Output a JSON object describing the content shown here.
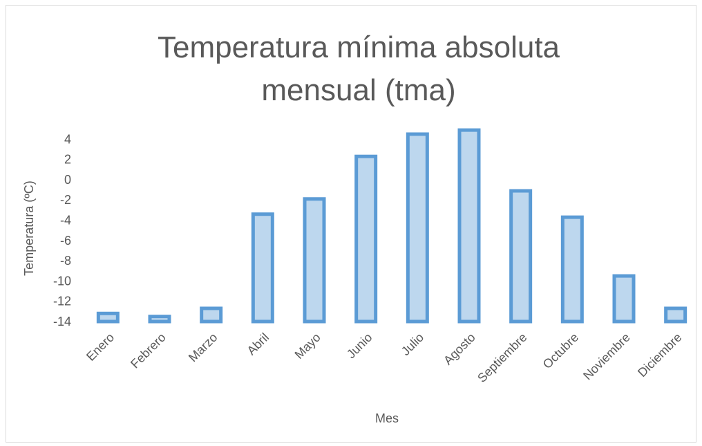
{
  "chart_data": {
    "type": "bar",
    "title_lines": [
      "Temperatura mínima absoluta",
      "mensual (tma)"
    ],
    "xlabel": "Mes",
    "ylabel": "Temperatura (ºC)",
    "categories": [
      "Enero",
      "Febrero",
      "Marzo",
      "Abril",
      "Mayo",
      "Junio",
      "Julio",
      "Agosto",
      "Septiembre",
      "Octubre",
      "Noviembre",
      "Diciembre"
    ],
    "series": [
      {
        "values": [
          -13.2,
          -13.5,
          -12.7,
          -3.4,
          -1.9,
          2.3,
          4.5,
          4.9,
          -1.1,
          -3.7,
          -9.5,
          -12.7
        ]
      }
    ],
    "yticks": [
      -14,
      -12,
      -10,
      -8,
      -6,
      -4,
      -2,
      0,
      2,
      4
    ],
    "ylim": [
      -14,
      6
    ],
    "grid": false,
    "legend": "none",
    "colors": {
      "bar_fill": "#bdd7ee",
      "bar_stroke": "#5b9bd5",
      "text": "#595959",
      "border": "#d9d9d9"
    }
  }
}
